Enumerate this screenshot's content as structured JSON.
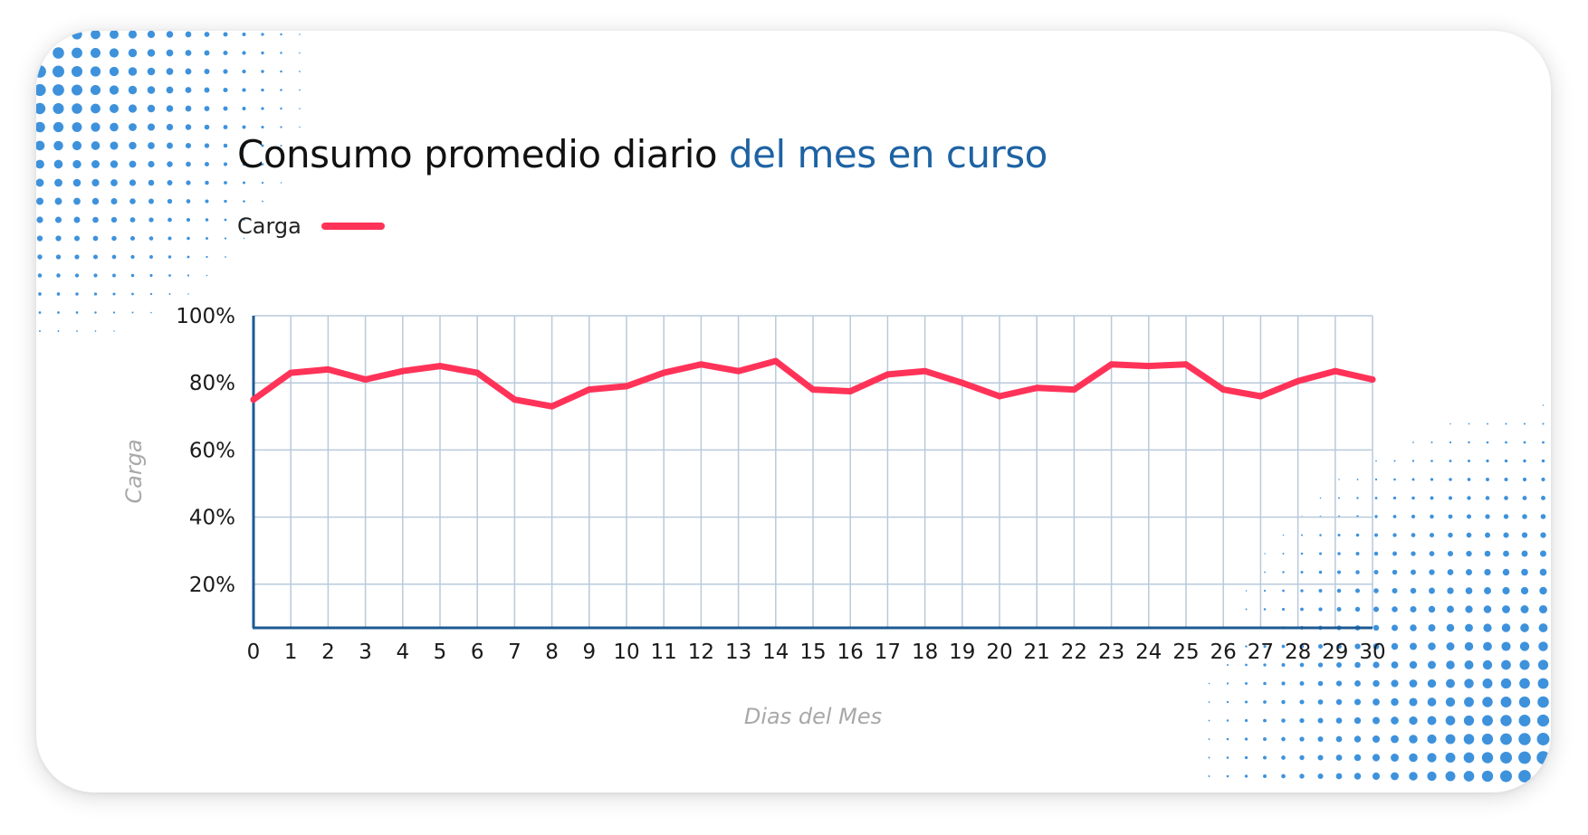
{
  "header": {
    "title_main": "Consumo promedio diario",
    "title_accent": "del mes en curso"
  },
  "legend": {
    "label": "Carga"
  },
  "colors": {
    "series": "#ff3358",
    "accent": "#1e63a3",
    "grid": "#b9cadb",
    "axis": "#1c5a93",
    "dots": "#3e92dc"
  },
  "chart_data": {
    "type": "line",
    "xlabel": "Dias del Mes",
    "ylabel": "Carga",
    "xlim": [
      0,
      30
    ],
    "ylim": [
      7,
      100
    ],
    "y_ticks": [
      20,
      40,
      60,
      80,
      100
    ],
    "y_tick_labels": [
      "20%",
      "40%",
      "60%",
      "80%",
      "100%"
    ],
    "grid": true,
    "legend_position": "top-left",
    "x": [
      0,
      1,
      2,
      3,
      4,
      5,
      6,
      7,
      8,
      9,
      10,
      11,
      12,
      13,
      14,
      15,
      16,
      17,
      18,
      19,
      20,
      21,
      22,
      23,
      24,
      25,
      26,
      27,
      28,
      29,
      30
    ],
    "x_tick_labels": [
      "0",
      "1",
      "2",
      "3",
      "4",
      "5",
      "6",
      "7",
      "8",
      "9",
      "10",
      "11",
      "12",
      "13",
      "14",
      "15",
      "16",
      "17",
      "18",
      "19",
      "20",
      "21",
      "22",
      "23",
      "24",
      "25",
      "26",
      "27",
      "28",
      "29",
      "30"
    ],
    "series": [
      {
        "name": "Carga",
        "values": [
          75,
          83,
          84,
          81,
          83.5,
          85,
          83,
          75,
          73,
          78,
          79,
          83,
          85.5,
          83.5,
          86.5,
          78,
          77.5,
          82.5,
          83.5,
          80,
          76,
          78.5,
          78,
          85.5,
          85,
          85.5,
          78,
          76,
          80.5,
          83.5,
          81
        ]
      }
    ]
  }
}
